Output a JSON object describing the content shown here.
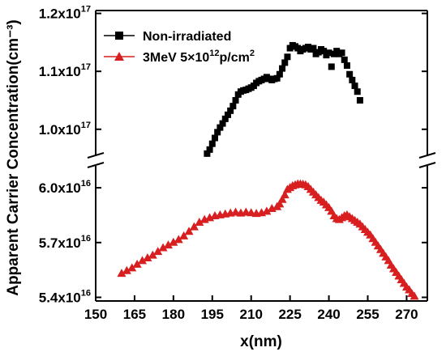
{
  "chart_data": {
    "type": "scatter",
    "xlabel": "x(nm)",
    "ylabel": "Apparent Carrier Concentration(cm⁻³)",
    "x_ticks": [
      150,
      165,
      180,
      195,
      210,
      225,
      240,
      255,
      270
    ],
    "xlim": [
      150,
      278
    ],
    "y_axis_break": true,
    "upper_panel": {
      "ylim": [
        9.55e+16,
        1.205e+17
      ],
      "ticks": [
        {
          "value": 1e+17,
          "mantissa": "1.0x10",
          "exp": "17"
        },
        {
          "value": 1.1e+17,
          "mantissa": "1.1x10",
          "exp": "17"
        },
        {
          "value": 1.2e+17,
          "mantissa": "1.2x10",
          "exp": "17"
        }
      ]
    },
    "lower_panel": {
      "ylim": [
        5.38e+16,
        6.12e+16
      ],
      "ticks": [
        {
          "value": 5.4e+16,
          "mantissa": "5.4x10",
          "exp": "16"
        },
        {
          "value": 5.7e+16,
          "mantissa": "5.7x10",
          "exp": "16"
        },
        {
          "value": 6e+16,
          "mantissa": "6.0x10",
          "exp": "16"
        }
      ]
    },
    "legend_position": "top-left",
    "series": [
      {
        "name": "Non-irradiated",
        "marker": "square",
        "color": "#000000",
        "x": [
          193,
          194,
          195,
          196,
          197,
          198,
          199,
          200,
          201,
          202,
          203,
          204,
          205,
          206,
          207,
          208,
          209,
          210,
          211,
          212,
          213,
          214,
          215,
          216,
          217,
          218,
          219,
          220,
          221,
          222,
          223,
          224,
          225,
          226,
          227,
          228,
          229,
          230,
          231,
          232,
          233,
          234,
          235,
          236,
          237,
          238,
          239,
          240,
          241,
          242,
          243,
          244,
          245,
          246,
          247,
          248,
          249,
          250,
          251,
          252
        ],
        "y": [
          9.58e+16,
          9.65e+16,
          9.75e+16,
          9.85e+16,
          9.95e+16,
          1.003e+17,
          1.01e+17,
          1.018e+17,
          1.025e+17,
          1.032e+17,
          1.04e+17,
          1.05e+17,
          1.06e+17,
          1.065e+17,
          1.067e+17,
          1.068e+17,
          1.07e+17,
          1.072e+17,
          1.075e+17,
          1.08e+17,
          1.083e+17,
          1.085e+17,
          1.087e+17,
          1.09e+17,
          1.087e+17,
          1.085e+17,
          1.087e+17,
          1.088e+17,
          1.095e+17,
          1.105e+17,
          1.115e+17,
          1.125e+17,
          1.14e+17,
          1.145e+17,
          1.143e+17,
          1.14e+17,
          1.135e+17,
          1.138e+17,
          1.14e+17,
          1.142e+17,
          1.138e+17,
          1.14e+17,
          1.13e+17,
          1.133e+17,
          1.138e+17,
          1.135e+17,
          1.128e+17,
          1.132e+17,
          1.108e+17,
          1.13e+17,
          1.135e+17,
          1.13e+17,
          1.132e+17,
          1.12e+17,
          1.11e+17,
          1.095e+17,
          1.085e+17,
          1.075e+17,
          1.065e+17,
          1.05e+17
        ]
      },
      {
        "name": "3MeV 5×10¹²p/cm²",
        "marker": "triangle",
        "color": "#d81f1f",
        "x": [
          160,
          162,
          164,
          166,
          168,
          170,
          172,
          174,
          176,
          178,
          180,
          182,
          184,
          186,
          188,
          190,
          192,
          194,
          196,
          198,
          200,
          202,
          204,
          206,
          208,
          210,
          212,
          214,
          216,
          218,
          220,
          221,
          222,
          223,
          224,
          225,
          226,
          227,
          228,
          229,
          230,
          231,
          232,
          233,
          234,
          235,
          236,
          237,
          238,
          239,
          240,
          241,
          242,
          243,
          244,
          245,
          246,
          247,
          248,
          249,
          250,
          251,
          252,
          253,
          254,
          255,
          256,
          257,
          258,
          259,
          260,
          261,
          262,
          263,
          264,
          265,
          266,
          267,
          268,
          269,
          270,
          271,
          272,
          273
        ],
        "y": [
          5.53e+16,
          5.545e+16,
          5.56e+16,
          5.58e+16,
          5.6e+16,
          5.615e+16,
          5.63e+16,
          5.65e+16,
          5.67e+16,
          5.685e+16,
          5.7e+16,
          5.715e+16,
          5.735e+16,
          5.76e+16,
          5.785e+16,
          5.81e+16,
          5.825e+16,
          5.835e+16,
          5.845e+16,
          5.85e+16,
          5.855e+16,
          5.86e+16,
          5.865e+16,
          5.86e+16,
          5.865e+16,
          5.862e+16,
          5.858e+16,
          5.862e+16,
          5.87e+16,
          5.885e+16,
          5.895e+16,
          5.91e+16,
          5.935e+16,
          5.96e+16,
          5.99e+16,
          6e+16,
          6.01e+16,
          6.015e+16,
          6.02e+16,
          6.02e+16,
          6.018e+16,
          6.015e+16,
          6.005e+16,
          5.99e+16,
          5.975e+16,
          5.96e+16,
          5.945e+16,
          5.93e+16,
          5.92e+16,
          5.905e+16,
          5.89e+16,
          5.87e+16,
          5.845e+16,
          5.83e+16,
          5.825e+16,
          5.835e+16,
          5.845e+16,
          5.85e+16,
          5.84e+16,
          5.83e+16,
          5.82e+16,
          5.81e+16,
          5.8e+16,
          5.785e+16,
          5.77e+16,
          5.755e+16,
          5.74e+16,
          5.72e+16,
          5.7e+16,
          5.68e+16,
          5.66e+16,
          5.64e+16,
          5.62e+16,
          5.6e+16,
          5.575e+16,
          5.555e+16,
          5.535e+16,
          5.515e+16,
          5.495e+16,
          5.475e+16,
          5.455e+16,
          5.44e+16,
          5.42e+16,
          5.405e+16
        ]
      }
    ]
  },
  "legend": {
    "s1_label": "Non-irradiated",
    "s2_prefix": "3MeV 5×10",
    "s2_exp": "12",
    "s2_mid": "p/cm",
    "s2_exp2": "2"
  }
}
